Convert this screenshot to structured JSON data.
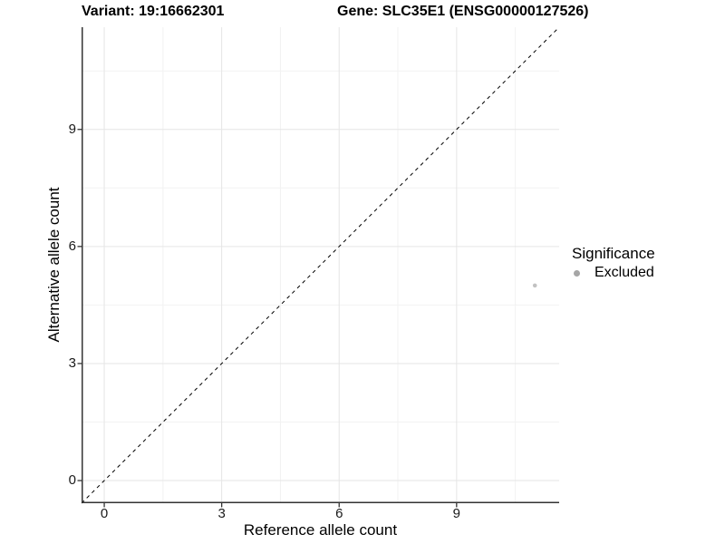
{
  "chart_data": {
    "type": "scatter",
    "titles": {
      "variant": "Variant: 19:16662301",
      "gene": "Gene: SLC35E1 (ENSG00000127526)"
    },
    "xlabel": "Reference allele count",
    "ylabel": "Alternative allele count",
    "x_major_ticks": [
      0,
      3,
      6,
      9
    ],
    "x_minor_ticks": [
      1.5,
      4.5,
      7.5,
      10.5
    ],
    "y_major_ticks": [
      0,
      3,
      6,
      9
    ],
    "y_minor_ticks": [
      1.5,
      4.5,
      7.5,
      10.5
    ],
    "xlim": [
      -0.58,
      11.62
    ],
    "ylim": [
      -0.58,
      11.62
    ],
    "grid": {
      "shown": true,
      "major_color": "#e5e5e5",
      "minor_color": "#f2f2f2"
    },
    "points": [
      {
        "x": 11,
        "y": 5,
        "significance": "Excluded"
      }
    ],
    "identity_line": {
      "slope": 1,
      "intercept": 0,
      "style": "dashed",
      "color": "#000000"
    },
    "legend": {
      "title": "Significance",
      "position": "right",
      "items": [
        {
          "label": "Excluded",
          "color": "#a6a6a6"
        }
      ]
    },
    "colors": {
      "point": "#c2c2c2",
      "axis_line": "#333333",
      "tick": "#333333",
      "background": "#ffffff"
    }
  }
}
